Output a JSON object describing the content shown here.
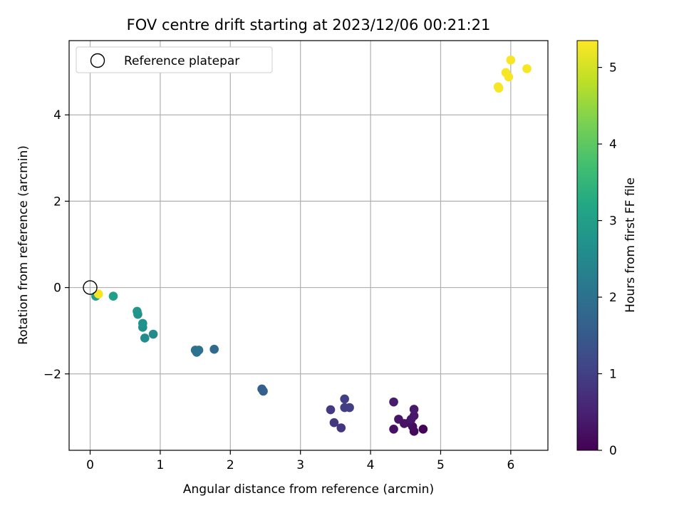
{
  "chart_data": {
    "type": "scatter",
    "title": "FOV centre drift starting at 2023/12/06 00:21:21",
    "xlabel": "Angular distance from reference (arcmin)",
    "ylabel": "Rotation from reference (arcmin)",
    "xlim": [
      -0.3,
      6.53
    ],
    "ylim": [
      -3.77,
      5.72
    ],
    "xticks": [
      0,
      1,
      2,
      3,
      4,
      5,
      6
    ],
    "yticks": [
      -2,
      0,
      2,
      4
    ],
    "grid": true,
    "legend": {
      "placement": "top-left",
      "label": "Reference platepar"
    },
    "reference_point": {
      "x": 0,
      "y": 0
    },
    "colorbar": {
      "label": "Hours from first FF file",
      "range": [
        0,
        5.35
      ],
      "ticks": [
        0,
        1,
        2,
        3,
        4,
        5
      ],
      "colormap": "viridis"
    },
    "points": [
      {
        "x": 4.75,
        "y": -3.28,
        "h": 0.05
      },
      {
        "x": 4.62,
        "y": -3.33,
        "h": 0.12
      },
      {
        "x": 4.6,
        "y": -3.22,
        "h": 0.18
      },
      {
        "x": 4.55,
        "y": -3.13,
        "h": 0.22
      },
      {
        "x": 4.33,
        "y": -3.28,
        "h": 0.25
      },
      {
        "x": 4.48,
        "y": -3.15,
        "h": 0.28
      },
      {
        "x": 4.4,
        "y": -3.05,
        "h": 0.3
      },
      {
        "x": 4.58,
        "y": -3.05,
        "h": 0.33
      },
      {
        "x": 4.62,
        "y": -2.97,
        "h": 0.35
      },
      {
        "x": 4.62,
        "y": -2.82,
        "h": 0.38
      },
      {
        "x": 4.33,
        "y": -2.65,
        "h": 0.42
      },
      {
        "x": 3.58,
        "y": -3.25,
        "h": 0.8
      },
      {
        "x": 3.48,
        "y": -3.13,
        "h": 0.85
      },
      {
        "x": 3.43,
        "y": -2.83,
        "h": 0.9
      },
      {
        "x": 3.63,
        "y": -2.78,
        "h": 0.95
      },
      {
        "x": 3.7,
        "y": -2.78,
        "h": 0.98
      },
      {
        "x": 3.63,
        "y": -2.58,
        "h": 1.0
      },
      {
        "x": 2.47,
        "y": -2.4,
        "h": 1.6
      },
      {
        "x": 2.45,
        "y": -2.35,
        "h": 1.62
      },
      {
        "x": 1.77,
        "y": -1.43,
        "h": 1.85
      },
      {
        "x": 1.5,
        "y": -1.45,
        "h": 2.0
      },
      {
        "x": 1.52,
        "y": -1.5,
        "h": 2.02
      },
      {
        "x": 1.55,
        "y": -1.45,
        "h": 2.05
      },
      {
        "x": 0.9,
        "y": -1.08,
        "h": 2.55
      },
      {
        "x": 0.78,
        "y": -1.17,
        "h": 2.6
      },
      {
        "x": 0.75,
        "y": -0.92,
        "h": 2.65
      },
      {
        "x": 0.75,
        "y": -0.83,
        "h": 2.7
      },
      {
        "x": 0.68,
        "y": -0.62,
        "h": 2.75
      },
      {
        "x": 0.67,
        "y": -0.55,
        "h": 2.78
      },
      {
        "x": 0.33,
        "y": -0.2,
        "h": 3.0
      },
      {
        "x": 0.08,
        "y": -0.2,
        "h": 3.05
      },
      {
        "x": 5.83,
        "y": 4.62,
        "h": 5.3
      },
      {
        "x": 5.82,
        "y": 4.65,
        "h": 5.3
      },
      {
        "x": 5.97,
        "y": 4.88,
        "h": 5.3
      },
      {
        "x": 5.93,
        "y": 4.98,
        "h": 5.3
      },
      {
        "x": 6.0,
        "y": 5.27,
        "h": 5.3
      },
      {
        "x": 6.23,
        "y": 5.07,
        "h": 5.3
      },
      {
        "x": 0.12,
        "y": -0.15,
        "h": 5.3
      }
    ]
  }
}
